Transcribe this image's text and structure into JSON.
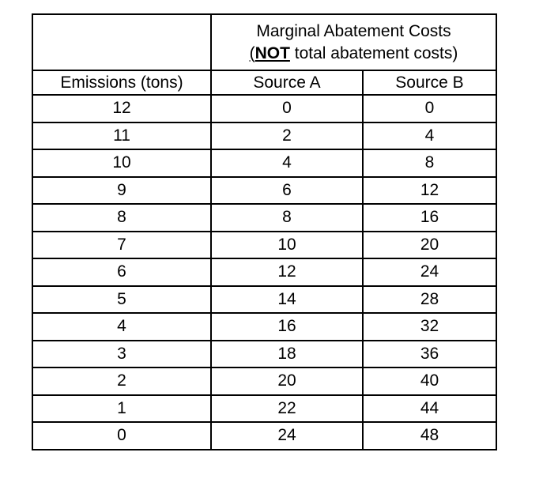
{
  "chart_data": {
    "type": "table",
    "title": "Marginal Abatement Costs (NOT total abatement costs)",
    "merged_header": {
      "line1": "Marginal Abatement Costs",
      "line2_open_paren": "(",
      "line2_emphasis": "NOT",
      "line2_rest": " total abatement costs)"
    },
    "column_headers": {
      "emissions": "Emissions (tons)",
      "source_a": "Source A",
      "source_b": "Source B"
    },
    "rows": [
      {
        "emissions": "12",
        "source_a": "0",
        "source_b": "0"
      },
      {
        "emissions": "11",
        "source_a": "2",
        "source_b": "4"
      },
      {
        "emissions": "10",
        "source_a": "4",
        "source_b": "8"
      },
      {
        "emissions": "9",
        "source_a": "6",
        "source_b": "12"
      },
      {
        "emissions": "8",
        "source_a": "8",
        "source_b": "16"
      },
      {
        "emissions": "7",
        "source_a": "10",
        "source_b": "20"
      },
      {
        "emissions": "6",
        "source_a": "12",
        "source_b": "24"
      },
      {
        "emissions": "5",
        "source_a": "14",
        "source_b": "28"
      },
      {
        "emissions": "4",
        "source_a": "16",
        "source_b": "32"
      },
      {
        "emissions": "3",
        "source_a": "18",
        "source_b": "36"
      },
      {
        "emissions": "2",
        "source_a": "20",
        "source_b": "40"
      },
      {
        "emissions": "1",
        "source_a": "22",
        "source_b": "44"
      },
      {
        "emissions": "0",
        "source_a": "24",
        "source_b": "48"
      }
    ],
    "layout": {
      "grid": "all-borders",
      "text_align": "center"
    },
    "colors": {
      "border": "#000000",
      "text": "#000000",
      "background": "#ffffff"
    }
  }
}
